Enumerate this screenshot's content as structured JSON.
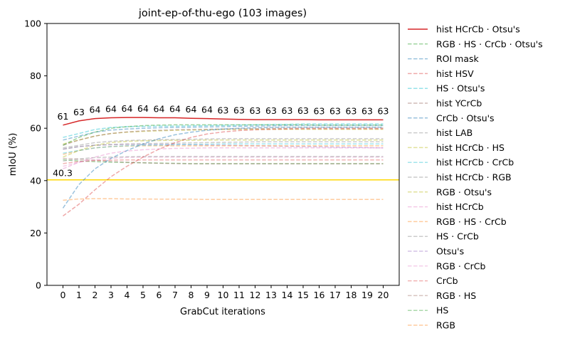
{
  "chart_data": {
    "type": "line",
    "title": "joint-ep-of-thu-ego (103 images)",
    "xlabel": "GrabCut iterations",
    "ylabel": "mIoU (%)",
    "ylim": [
      0,
      100
    ],
    "xlim": [
      -1,
      21
    ],
    "yticks": [
      0,
      20,
      40,
      60,
      80,
      100
    ],
    "x": [
      0,
      1,
      2,
      3,
      4,
      5,
      6,
      7,
      8,
      9,
      10,
      11,
      12,
      13,
      14,
      15,
      16,
      17,
      18,
      19,
      20
    ],
    "legend_position": "outside-right",
    "reference_line": {
      "value": 40.3,
      "label": "40.3",
      "color": "#ffd700"
    },
    "highlight_labels": [
      "61",
      "63",
      "64",
      "64",
      "64",
      "64",
      "64",
      "64",
      "64",
      "64",
      "63",
      "63",
      "63",
      "63",
      "63",
      "63",
      "63",
      "63",
      "63",
      "63",
      "63"
    ],
    "series": [
      {
        "name": "hist HCrCb · Otsu's",
        "color": "#d62728",
        "dashed": false,
        "alpha": 1.0,
        "values": [
          61.2,
          62.8,
          63.7,
          64.0,
          64.1,
          64.1,
          64.0,
          64.0,
          63.8,
          63.7,
          63.5,
          63.4,
          63.3,
          63.3,
          63.3,
          63.3,
          63.2,
          63.2,
          63.2,
          63.2,
          63.2
        ]
      },
      {
        "name": "RGB · HS · CrCb · Otsu's",
        "color": "#2ca02c",
        "dashed": true,
        "alpha": 0.45,
        "values": [
          53.5,
          56.5,
          58.5,
          60.0,
          60.6,
          61.0,
          61.2,
          61.3,
          61.3,
          61.3,
          61.3,
          61.3,
          61.3,
          61.3,
          61.3,
          61.3,
          61.2,
          61.2,
          61.2,
          61.2,
          61.2
        ]
      },
      {
        "name": "ROI mask",
        "color": "#1f77b4",
        "dashed": true,
        "alpha": 0.45,
        "values": [
          29.5,
          38.5,
          44.5,
          48.5,
          51.5,
          54.0,
          56.0,
          57.5,
          58.5,
          59.2,
          59.7,
          60.0,
          60.2,
          60.3,
          60.4,
          60.4,
          60.4,
          60.4,
          60.4,
          60.4,
          60.4
        ]
      },
      {
        "name": "hist HSV",
        "color": "#d62728",
        "dashed": true,
        "alpha": 0.4,
        "values": [
          26.5,
          31.0,
          36.5,
          41.5,
          45.5,
          49.0,
          52.0,
          54.5,
          56.5,
          57.8,
          58.6,
          59.1,
          59.4,
          59.6,
          59.7,
          59.8,
          59.8,
          59.8,
          59.8,
          59.8,
          59.8
        ]
      },
      {
        "name": "HS · Otsu's",
        "color": "#17becf",
        "dashed": true,
        "alpha": 0.45,
        "values": [
          56.5,
          58.0,
          59.5,
          60.3,
          60.6,
          60.7,
          60.8,
          60.8,
          60.9,
          61.0,
          61.1,
          61.2,
          61.3,
          61.4,
          61.5,
          61.6,
          61.6,
          61.6,
          61.6,
          61.6,
          61.6
        ]
      },
      {
        "name": "hist YCrCb",
        "color": "#8c564b",
        "dashed": true,
        "alpha": 0.4,
        "values": [
          53.5,
          55.5,
          57.0,
          58.0,
          58.6,
          59.0,
          59.2,
          59.4,
          59.5,
          59.6,
          59.7,
          59.8,
          59.9,
          60.0,
          60.0,
          60.1,
          60.1,
          60.1,
          60.1,
          60.1,
          60.1
        ]
      },
      {
        "name": "CrCb · Otsu's",
        "color": "#1f77b4",
        "dashed": true,
        "alpha": 0.45,
        "values": [
          55.5,
          57.0,
          58.5,
          59.3,
          59.7,
          60.0,
          60.2,
          60.3,
          60.4,
          60.5,
          60.6,
          60.7,
          60.8,
          60.9,
          61.0,
          61.0,
          61.0,
          61.0,
          61.0,
          61.0,
          61.0
        ]
      },
      {
        "name": "hist LAB",
        "color": "#7f7f7f",
        "dashed": true,
        "alpha": 0.4,
        "values": [
          52.0,
          53.0,
          53.5,
          53.8,
          54.0,
          54.1,
          54.2,
          54.3,
          54.4,
          54.5,
          54.6,
          54.7,
          54.8,
          54.8,
          54.8,
          54.8,
          54.8,
          54.8,
          54.8,
          54.8,
          54.8
        ]
      },
      {
        "name": "hist HCrCb · HS",
        "color": "#bcbd22",
        "dashed": true,
        "alpha": 0.45,
        "values": [
          54.0,
          55.5,
          57.0,
          58.0,
          58.5,
          58.8,
          59.0,
          59.2,
          59.3,
          59.4,
          59.5,
          59.5,
          59.6,
          59.6,
          59.6,
          59.6,
          59.6,
          59.6,
          59.6,
          59.6,
          59.6
        ]
      },
      {
        "name": "hist HCrCb · CrCb",
        "color": "#17becf",
        "dashed": true,
        "alpha": 0.4,
        "values": [
          50.5,
          51.5,
          52.5,
          53.0,
          53.3,
          53.5,
          53.6,
          53.7,
          53.8,
          53.9,
          54.0,
          54.0,
          54.0,
          54.0,
          54.0,
          54.0,
          54.0,
          54.0,
          54.0,
          54.0,
          54.0
        ]
      },
      {
        "name": "hist HCrCb · RGB",
        "color": "#7f7f7f",
        "dashed": true,
        "alpha": 0.4,
        "values": [
          52.5,
          53.5,
          54.5,
          55.0,
          55.3,
          55.5,
          55.6,
          55.7,
          55.8,
          55.9,
          56.0,
          56.0,
          56.0,
          56.0,
          56.0,
          56.0,
          56.0,
          56.0,
          56.0,
          56.0,
          56.0
        ]
      },
      {
        "name": "RGB · Otsu's",
        "color": "#bcbd22",
        "dashed": true,
        "alpha": 0.45,
        "values": [
          49.0,
          51.5,
          53.5,
          54.5,
          55.0,
          55.2,
          55.3,
          55.4,
          55.4,
          55.5,
          55.5,
          55.5,
          55.5,
          55.5,
          55.5,
          55.5,
          55.5,
          55.5,
          55.5,
          55.5,
          55.5
        ]
      },
      {
        "name": "hist HCrCb",
        "color": "#e377c2",
        "dashed": true,
        "alpha": 0.4,
        "values": [
          44.5,
          47.0,
          49.0,
          50.5,
          51.3,
          51.8,
          52.1,
          52.3,
          52.4,
          52.5,
          52.5,
          52.5,
          52.5,
          52.5,
          52.5,
          52.5,
          52.5,
          52.5,
          52.5,
          52.5,
          52.5
        ]
      },
      {
        "name": "RGB · HS · CrCb",
        "color": "#ff7f0e",
        "dashed": true,
        "alpha": 0.4,
        "values": [
          50.0,
          51.5,
          52.5,
          53.0,
          53.2,
          53.3,
          53.3,
          53.3,
          53.3,
          53.3,
          53.3,
          53.3,
          53.3,
          53.3,
          53.3,
          53.3,
          53.3,
          53.3,
          53.3,
          53.3,
          53.3
        ]
      },
      {
        "name": "HS · CrCb",
        "color": "#7f7f7f",
        "dashed": true,
        "alpha": 0.4,
        "values": [
          47.5,
          48.3,
          48.8,
          49.0,
          49.1,
          49.2,
          49.2,
          49.2,
          49.2,
          49.2,
          49.2,
          49.2,
          49.2,
          49.2,
          49.2,
          49.2,
          49.2,
          49.2,
          49.2,
          49.2,
          49.2
        ]
      },
      {
        "name": "Otsu's",
        "color": "#9467bd",
        "dashed": true,
        "alpha": 0.4,
        "values": [
          52.0,
          53.0,
          53.5,
          53.7,
          53.8,
          53.8,
          53.8,
          53.8,
          53.7,
          53.6,
          53.5,
          53.4,
          53.3,
          53.2,
          53.1,
          53.0,
          52.9,
          52.8,
          52.7,
          52.6,
          52.5
        ]
      },
      {
        "name": "RGB · CrCb",
        "color": "#e377c2",
        "dashed": true,
        "alpha": 0.35,
        "values": [
          45.5,
          47.0,
          48.0,
          48.5,
          48.8,
          49.0,
          49.0,
          49.0,
          49.0,
          49.0,
          49.0,
          49.0,
          49.0,
          49.0,
          49.0,
          49.0,
          49.0,
          49.0,
          49.0,
          49.0,
          49.0
        ]
      },
      {
        "name": "CrCb",
        "color": "#d62728",
        "dashed": true,
        "alpha": 0.35,
        "values": [
          46.5,
          47.3,
          47.6,
          47.8,
          47.9,
          47.9,
          47.9,
          47.9,
          47.9,
          47.9,
          47.9,
          47.9,
          47.9,
          47.9,
          47.9,
          47.9,
          47.9,
          47.9,
          47.9,
          47.9,
          47.9
        ]
      },
      {
        "name": "RGB · HS",
        "color": "#8c564b",
        "dashed": true,
        "alpha": 0.35,
        "values": [
          48.5,
          48.2,
          47.8,
          47.3,
          47.0,
          46.8,
          46.6,
          46.5,
          46.4,
          46.4,
          46.4,
          46.4,
          46.4,
          46.4,
          46.4,
          46.4,
          46.4,
          46.4,
          46.4,
          46.4,
          46.4
        ]
      },
      {
        "name": "HS",
        "color": "#2ca02c",
        "dashed": true,
        "alpha": 0.4,
        "values": [
          48.0,
          47.5,
          47.2,
          47.0,
          46.9,
          46.8,
          46.7,
          46.6,
          46.5,
          46.5,
          46.5,
          46.5,
          46.5,
          46.5,
          46.5,
          46.5,
          46.5,
          46.5,
          46.5,
          46.5,
          46.5
        ]
      },
      {
        "name": "RGB",
        "color": "#ff7f0e",
        "dashed": true,
        "alpha": 0.4,
        "values": [
          32.5,
          33.0,
          33.1,
          33.1,
          33.0,
          33.0,
          32.9,
          32.9,
          32.9,
          32.8,
          32.8,
          32.8,
          32.8,
          32.8,
          32.8,
          32.8,
          32.8,
          32.8,
          32.8,
          32.8,
          32.8
        ]
      }
    ]
  }
}
